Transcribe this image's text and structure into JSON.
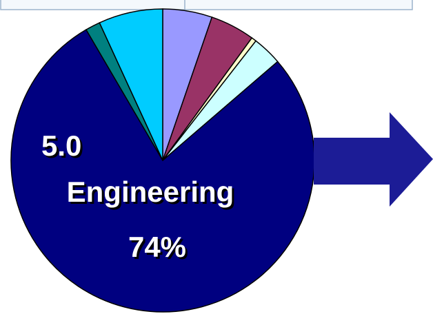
{
  "chart_data": {
    "type": "pie",
    "categories": [
      null,
      null,
      null,
      null,
      "Engineering",
      null,
      null
    ],
    "values": [
      5,
      4.5,
      0.5,
      3,
      74,
      1.5,
      6.5
    ],
    "value_labels": [
      null,
      null,
      null,
      null,
      "74%",
      null,
      null
    ],
    "colors": [
      "#9999ff",
      "#993366",
      "#ffffcc",
      "#ccffff",
      "#000080",
      "#008080",
      "#00ccff"
    ],
    "annotations": [
      "5.0"
    ]
  }
}
